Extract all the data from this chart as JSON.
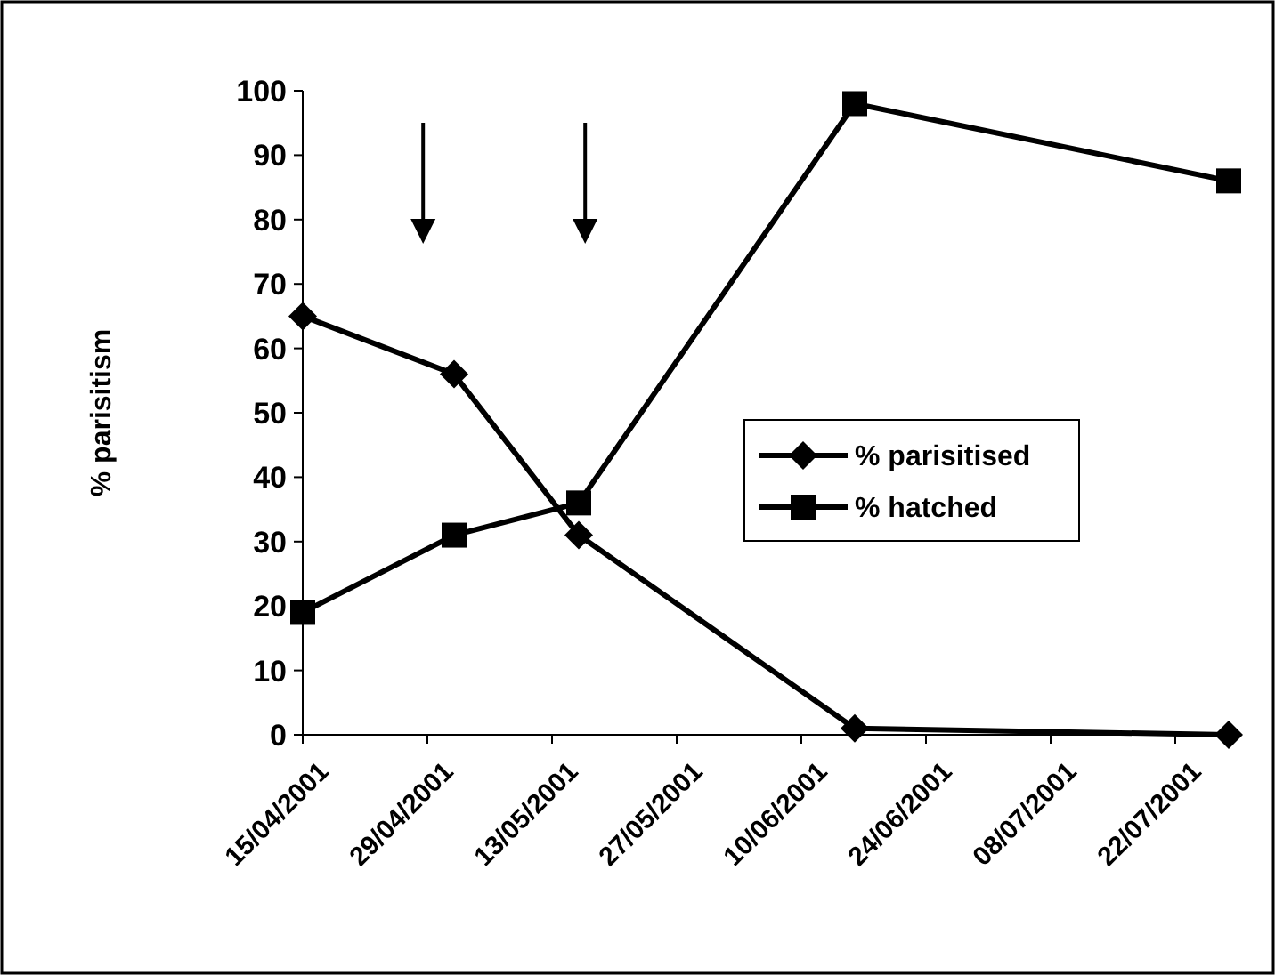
{
  "chart_data": {
    "type": "line",
    "ylabel": "% parisitism",
    "x": [
      "2001-04-15",
      "2001-05-02",
      "2001-05-16",
      "2001-06-16",
      "2001-07-28"
    ],
    "xlim": [
      "2001-04-15",
      "2001-07-28"
    ],
    "xticks": [
      {
        "value": "2001-04-15",
        "label": "15/04/2001"
      },
      {
        "value": "2001-04-29",
        "label": "29/04/2001"
      },
      {
        "value": "2001-05-13",
        "label": "13/05/2001"
      },
      {
        "value": "2001-05-27",
        "label": "27/05/2001"
      },
      {
        "value": "2001-06-10",
        "label": "10/06/2001"
      },
      {
        "value": "2001-06-24",
        "label": "24/06/2001"
      },
      {
        "value": "2001-07-08",
        "label": "08/07/2001"
      },
      {
        "value": "2001-07-22",
        "label": "22/07/2001"
      }
    ],
    "ylim": [
      0,
      100
    ],
    "yticks": [
      0,
      10,
      20,
      30,
      40,
      50,
      60,
      70,
      80,
      90,
      100
    ],
    "series": [
      {
        "name": "% parisitised",
        "color": "#000000",
        "marker": "diamond",
        "values": [
          65,
          56,
          31,
          1,
          0
        ]
      },
      {
        "name": "% hatched",
        "color": "#000000",
        "marker": "square",
        "values": [
          19,
          31,
          36,
          98,
          86
        ]
      }
    ],
    "legend": "right",
    "grid": false,
    "line_style": "solid"
  }
}
